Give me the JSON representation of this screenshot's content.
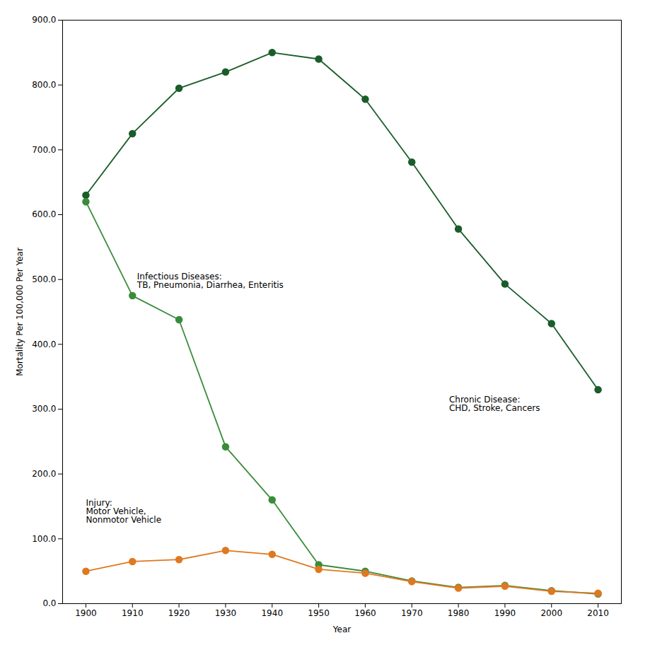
{
  "chart_data": {
    "type": "line",
    "x": [
      1900,
      1910,
      1920,
      1930,
      1940,
      1950,
      1960,
      1970,
      1980,
      1990,
      2000,
      2010
    ],
    "series": [
      {
        "color": "#1a5c2a",
        "values": [
          630,
          725,
          795,
          820,
          850,
          840,
          778,
          681,
          578,
          493,
          432,
          330
        ]
      },
      {
        "color": "#3a8c3a",
        "values": [
          620,
          475,
          438,
          242,
          160,
          60,
          50,
          35,
          25,
          28,
          20,
          15
        ]
      },
      {
        "color": "#e07820",
        "values": [
          50,
          65,
          68,
          82,
          76,
          53,
          47,
          34,
          24,
          27,
          19,
          16
        ]
      }
    ],
    "marker": "circle",
    "xlabel": "Year",
    "ylabel": "Mortality Per 100,000 Per Year",
    "xlim": [
      1895,
      2015
    ],
    "xticks": [
      1900,
      1910,
      1920,
      1930,
      1940,
      1950,
      1960,
      1970,
      1980,
      1990,
      2000,
      2010
    ],
    "ylim": [
      0,
      900
    ],
    "yticks": [
      {
        "value": 0,
        "label": "0.0"
      },
      {
        "value": 100,
        "label": "100.0"
      },
      {
        "value": 200,
        "label": "200.0"
      },
      {
        "value": 300,
        "label": "300.0"
      },
      {
        "value": 400,
        "label": "400.0"
      },
      {
        "value": 500,
        "label": "500.0"
      },
      {
        "value": 600,
        "label": "600.0"
      },
      {
        "value": 700,
        "label": "700.0"
      },
      {
        "value": 800,
        "label": "800.0"
      },
      {
        "value": 900,
        "label": "900.0"
      }
    ],
    "annotations": [
      {
        "x": 1978,
        "y": 320,
        "text": "Chronic Disease:\nCHD, Stroke, Cancers"
      },
      {
        "x": 1911,
        "y": 510,
        "text": "Infectious Diseases:\nTB, Pneumonia, Diarrhea, Enteritis"
      },
      {
        "x": 1900,
        "y": 160,
        "text": "Injury:\nMotor Vehicle,\nNonmotor Vehicle"
      }
    ],
    "grid": false
  }
}
